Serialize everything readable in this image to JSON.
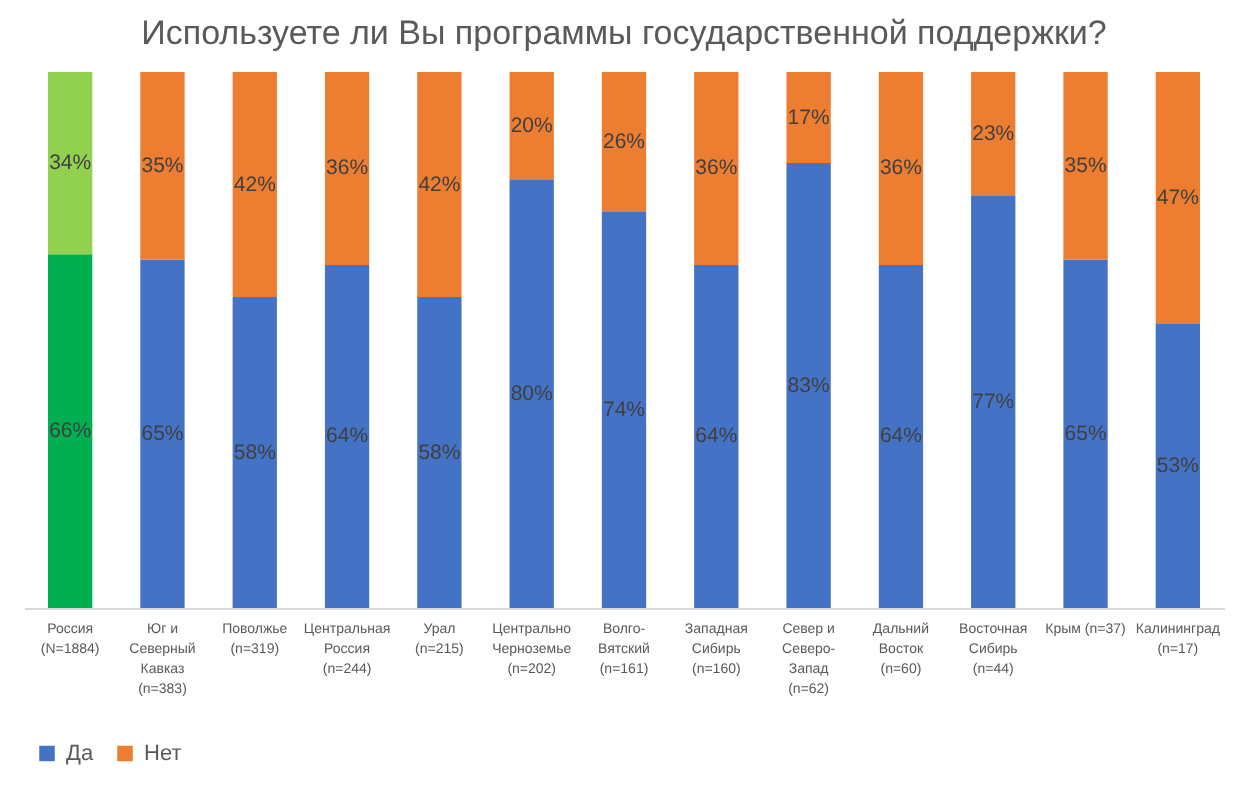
{
  "chart_data": {
    "type": "bar",
    "stacked": true,
    "title": "Используете ли Вы программы государственной поддержки?",
    "categories": [
      "Россия (N=1884)",
      "Юг и Северный Кавказ (n=383)",
      "Поволжье (n=319)",
      "Центральная Россия (n=244)",
      "Урал (n=215)",
      "Центрально Черноземье (n=202)",
      "Волго-Вятский(n=161)",
      "Западная Сибирь (n=160)",
      "Север и Северо-Запад (n=62)",
      "Дальний Восток (n=60)",
      "Восточная Сибирь (n=44)",
      "Крым (n=37)",
      "Калининград (n=17)"
    ],
    "series": [
      {
        "name": "Да",
        "color": "#4472c4",
        "colors": [
          "#00b050",
          "#4472c4",
          "#4472c4",
          "#4472c4",
          "#4472c4",
          "#4472c4",
          "#4472c4",
          "#4472c4",
          "#4472c4",
          "#4472c4",
          "#4472c4",
          "#4472c4",
          "#4472c4"
        ],
        "values": [
          66,
          65,
          58,
          64,
          58,
          80,
          74,
          64,
          83,
          64,
          77,
          65,
          53
        ],
        "value_labels": [
          "66%",
          "65%",
          "58%",
          "64%",
          "58%",
          "80%",
          "74%",
          "64%",
          "83%",
          "64%",
          "77%",
          "65%",
          "53%"
        ]
      },
      {
        "name": "Нет",
        "color": "#ed7d31",
        "colors": [
          "#92d050",
          "#ed7d31",
          "#ed7d31",
          "#ed7d31",
          "#ed7d31",
          "#ed7d31",
          "#ed7d31",
          "#ed7d31",
          "#ed7d31",
          "#ed7d31",
          "#ed7d31",
          "#ed7d31",
          "#ed7d31"
        ],
        "values": [
          34,
          35,
          42,
          36,
          42,
          20,
          26,
          36,
          17,
          36,
          23,
          35,
          47
        ],
        "value_labels": [
          "34%",
          "35%",
          "42%",
          "36%",
          "42%",
          "20%",
          "26%",
          "36%",
          "17%",
          "36%",
          "23%",
          "35%",
          "47%"
        ]
      }
    ],
    "ylim": [
      0,
      100
    ],
    "tick_labels": "x",
    "legend": "bottom"
  }
}
